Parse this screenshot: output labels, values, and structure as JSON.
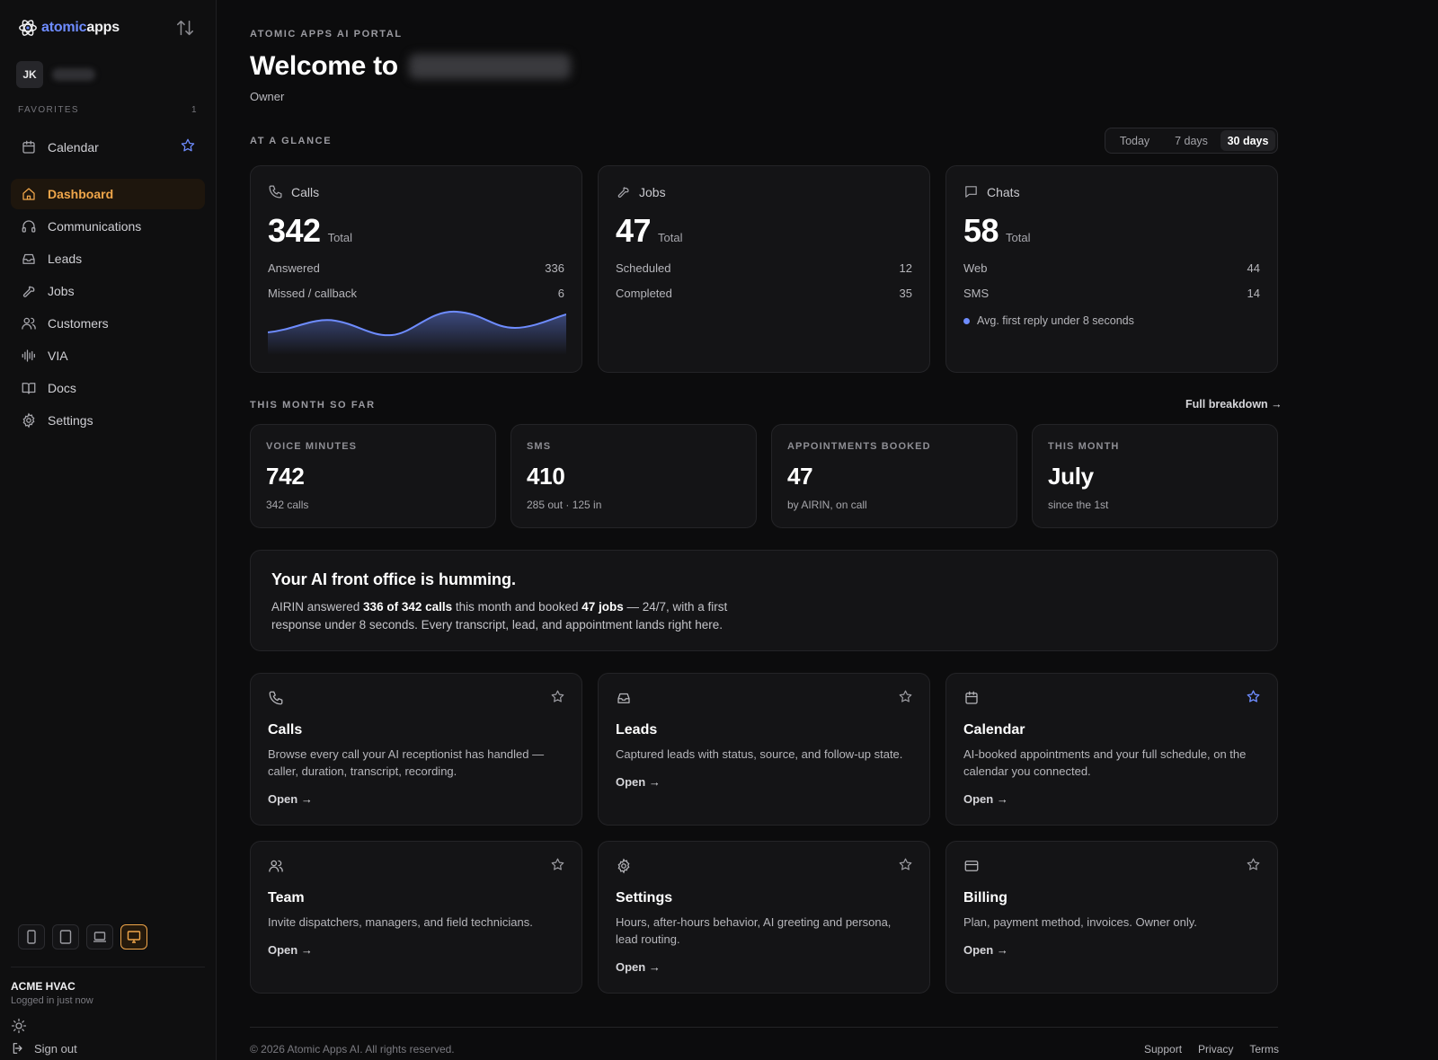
{
  "sidebar": {
    "brand": {
      "accent": "atomic",
      "main": "apps"
    },
    "account": {
      "initials": "JK"
    },
    "favorites": {
      "label": "FAVORITES",
      "count": "1",
      "items": [
        {
          "label": "Calendar"
        }
      ]
    },
    "nav": [
      {
        "label": "Dashboard",
        "icon": "home-icon",
        "active": true
      },
      {
        "label": "Communications",
        "icon": "headphones-icon"
      },
      {
        "label": "Leads",
        "icon": "inbox-icon"
      },
      {
        "label": "Jobs",
        "icon": "wrench-icon"
      },
      {
        "label": "Customers",
        "icon": "users-icon"
      },
      {
        "label": "VIA",
        "icon": "waveform-icon"
      },
      {
        "label": "Docs",
        "icon": "book-icon"
      },
      {
        "label": "Settings",
        "icon": "gear-icon"
      }
    ],
    "devices": [
      "phone-icon",
      "tablet-icon",
      "laptop-icon",
      "desktop-icon"
    ],
    "active_device": "desktop-icon",
    "org": {
      "name": "ACME HVAC",
      "status": "Logged in just now"
    },
    "signout": "Sign out"
  },
  "main": {
    "eyebrow": "ATOMIC APPS AI PORTAL",
    "welcome": "Welcome to",
    "role": "Owner",
    "glance": {
      "label": "AT A GLANCE",
      "ranges": [
        "Today",
        "7 days",
        "30 days"
      ],
      "active_range": "30 days",
      "cards": [
        {
          "title": "Calls",
          "icon": "phone-icon",
          "total": "342",
          "unit": "Total",
          "rows": [
            {
              "label": "Answered",
              "value": "336"
            },
            {
              "label": "Missed / callback",
              "value": "6"
            }
          ]
        },
        {
          "title": "Jobs",
          "icon": "wrench-icon",
          "total": "47",
          "unit": "Total",
          "rows": [
            {
              "label": "Scheduled",
              "value": "12"
            },
            {
              "label": "Completed",
              "value": "35"
            }
          ]
        },
        {
          "title": "Chats",
          "icon": "chat-icon",
          "total": "58",
          "unit": "Total",
          "rows": [
            {
              "label": "Web",
              "value": "44"
            },
            {
              "label": "SMS",
              "value": "14"
            }
          ],
          "note": "Avg. first reply under 8 seconds"
        }
      ]
    },
    "month": {
      "label": "THIS MONTH SO FAR",
      "link": "Full breakdown →",
      "cards": [
        {
          "label": "VOICE MINUTES",
          "value": "742",
          "sub": "342 calls"
        },
        {
          "label": "SMS",
          "value": "410",
          "sub": "285 out · 125 in"
        },
        {
          "label": "APPOINTMENTS BOOKED",
          "value": "47",
          "sub": "by AIRIN, on call"
        },
        {
          "label": "THIS MONTH",
          "value": "July",
          "sub": "since the 1st"
        }
      ]
    },
    "hero": {
      "title": "Your AI front office is humming.",
      "t1": "AIRIN answered ",
      "b1": "336 of 342 calls",
      "t2": " this month and booked ",
      "b2": "47 jobs",
      "t3": " — 24/7, with a first response under 8 seconds. Every transcript, lead, and appointment lands right here."
    },
    "features": [
      {
        "title": "Calls",
        "icon": "phone-icon",
        "starred": false,
        "desc": "Browse every call your AI receptionist has handled — caller, duration, transcript, recording.",
        "open": "Open →"
      },
      {
        "title": "Leads",
        "icon": "inbox-icon",
        "starred": false,
        "desc": "Captured leads with status, source, and follow-up state.",
        "open": "Open →"
      },
      {
        "title": "Calendar",
        "icon": "calendar-icon",
        "starred": true,
        "desc": "AI-booked appointments and your full schedule, on the calendar you connected.",
        "open": "Open →"
      },
      {
        "title": "Team",
        "icon": "users-icon",
        "starred": false,
        "desc": "Invite dispatchers, managers, and field technicians.",
        "open": "Open →"
      },
      {
        "title": "Settings",
        "icon": "gear-icon",
        "starred": false,
        "desc": "Hours, after-hours behavior, AI greeting and persona, lead routing.",
        "open": "Open →"
      },
      {
        "title": "Billing",
        "icon": "card-icon",
        "starred": false,
        "desc": "Plan, payment method, invoices. Owner only.",
        "open": "Open →"
      }
    ],
    "footer": {
      "copyright": "© 2026 Atomic Apps AI. All rights reserved.",
      "links": [
        "Support",
        "Privacy",
        "Terms"
      ]
    }
  },
  "colors": {
    "accent_blue": "#6e8cff",
    "active_orange": "#f0a64a",
    "background": "#0c0c0d",
    "card": "#141416"
  }
}
